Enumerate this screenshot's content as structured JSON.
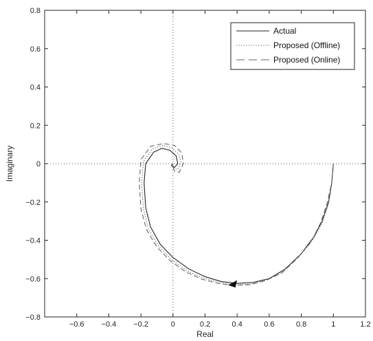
{
  "chart_data": {
    "type": "line",
    "title": "",
    "xlabel": "Real",
    "ylabel": "Imaginary",
    "xlim": [
      -0.8,
      1.2
    ],
    "ylim": [
      -0.8,
      0.8
    ],
    "x_ticks": [
      -0.6,
      -0.4,
      -0.2,
      0,
      0.2,
      0.4,
      0.6,
      0.8,
      1,
      1.2
    ],
    "x_tick_labels": [
      "−0.6",
      "−0.4",
      "−0.2",
      "0",
      "0.2",
      "0.4",
      "0.6",
      "0.8",
      "1",
      "1.2"
    ],
    "y_ticks": [
      -0.8,
      -0.6,
      -0.4,
      -0.2,
      0,
      0.2,
      0.4,
      0.6,
      0.8
    ],
    "y_tick_labels": [
      "−0.8",
      "−0.6",
      "−0.4",
      "−0.2",
      "0",
      "0.2",
      "0.4",
      "0.6",
      "0.8"
    ],
    "grid": false,
    "reference_lines": {
      "x": 0,
      "y": 0,
      "style": "dotted"
    },
    "legend_position": "top-right",
    "colors": {
      "actual": "#222222",
      "offline": "#555555",
      "online": "#666666",
      "reference": "#555555"
    },
    "series": [
      {
        "name": "Actual",
        "style": "solid",
        "points": [
          [
            1.0,
            0.0
          ],
          [
            0.99,
            -0.1
          ],
          [
            0.97,
            -0.2
          ],
          [
            0.93,
            -0.3
          ],
          [
            0.88,
            -0.38
          ],
          [
            0.8,
            -0.47
          ],
          [
            0.7,
            -0.55
          ],
          [
            0.6,
            -0.6
          ],
          [
            0.5,
            -0.62
          ],
          [
            0.4,
            -0.625
          ],
          [
            0.3,
            -0.615
          ],
          [
            0.2,
            -0.59
          ],
          [
            0.1,
            -0.55
          ],
          [
            0.0,
            -0.49
          ],
          [
            -0.08,
            -0.42
          ],
          [
            -0.14,
            -0.33
          ],
          [
            -0.17,
            -0.23
          ],
          [
            -0.18,
            -0.1
          ],
          [
            -0.17,
            0.0
          ],
          [
            -0.12,
            0.06
          ],
          [
            -0.07,
            0.08
          ],
          [
            -0.02,
            0.07
          ],
          [
            0.02,
            0.04
          ],
          [
            0.03,
            0.0
          ],
          [
            0.01,
            -0.02
          ],
          [
            -0.01,
            -0.01
          ],
          [
            0.0,
            0.0
          ]
        ]
      },
      {
        "name": "Proposed (Offline)",
        "style": "dotted",
        "points": [
          [
            1.0,
            0.0
          ],
          [
            0.99,
            -0.1
          ],
          [
            0.97,
            -0.21
          ],
          [
            0.93,
            -0.31
          ],
          [
            0.87,
            -0.4
          ],
          [
            0.79,
            -0.48
          ],
          [
            0.69,
            -0.56
          ],
          [
            0.59,
            -0.605
          ],
          [
            0.49,
            -0.628
          ],
          [
            0.39,
            -0.632
          ],
          [
            0.29,
            -0.62
          ],
          [
            0.19,
            -0.598
          ],
          [
            0.09,
            -0.56
          ],
          [
            -0.01,
            -0.5
          ],
          [
            -0.09,
            -0.43
          ],
          [
            -0.155,
            -0.34
          ],
          [
            -0.185,
            -0.23
          ],
          [
            -0.195,
            -0.1
          ],
          [
            -0.185,
            0.01
          ],
          [
            -0.13,
            0.075
          ],
          [
            -0.07,
            0.095
          ],
          [
            -0.01,
            0.085
          ],
          [
            0.035,
            0.05
          ],
          [
            0.05,
            0.005
          ],
          [
            0.03,
            -0.03
          ],
          [
            0.005,
            -0.025
          ],
          [
            0.0,
            -0.005
          ]
        ]
      },
      {
        "name": "Proposed (Online)",
        "style": "dashed",
        "points": [
          [
            1.0,
            0.0
          ],
          [
            0.99,
            -0.1
          ],
          [
            0.96,
            -0.21
          ],
          [
            0.92,
            -0.31
          ],
          [
            0.86,
            -0.41
          ],
          [
            0.78,
            -0.49
          ],
          [
            0.68,
            -0.57
          ],
          [
            0.58,
            -0.61
          ],
          [
            0.48,
            -0.632
          ],
          [
            0.38,
            -0.636
          ],
          [
            0.28,
            -0.625
          ],
          [
            0.18,
            -0.603
          ],
          [
            0.08,
            -0.565
          ],
          [
            -0.02,
            -0.505
          ],
          [
            -0.1,
            -0.435
          ],
          [
            -0.165,
            -0.345
          ],
          [
            -0.2,
            -0.235
          ],
          [
            -0.21,
            -0.1
          ],
          [
            -0.2,
            0.02
          ],
          [
            -0.14,
            0.09
          ],
          [
            -0.06,
            0.105
          ],
          [
            0.01,
            0.095
          ],
          [
            0.055,
            0.055
          ],
          [
            0.065,
            0.0
          ],
          [
            0.04,
            -0.045
          ],
          [
            0.01,
            -0.04
          ],
          [
            -0.005,
            -0.01
          ]
        ]
      }
    ],
    "annotations": [
      {
        "type": "arrow",
        "at": [
          0.375,
          -0.63
        ],
        "direction": "left"
      }
    ]
  }
}
